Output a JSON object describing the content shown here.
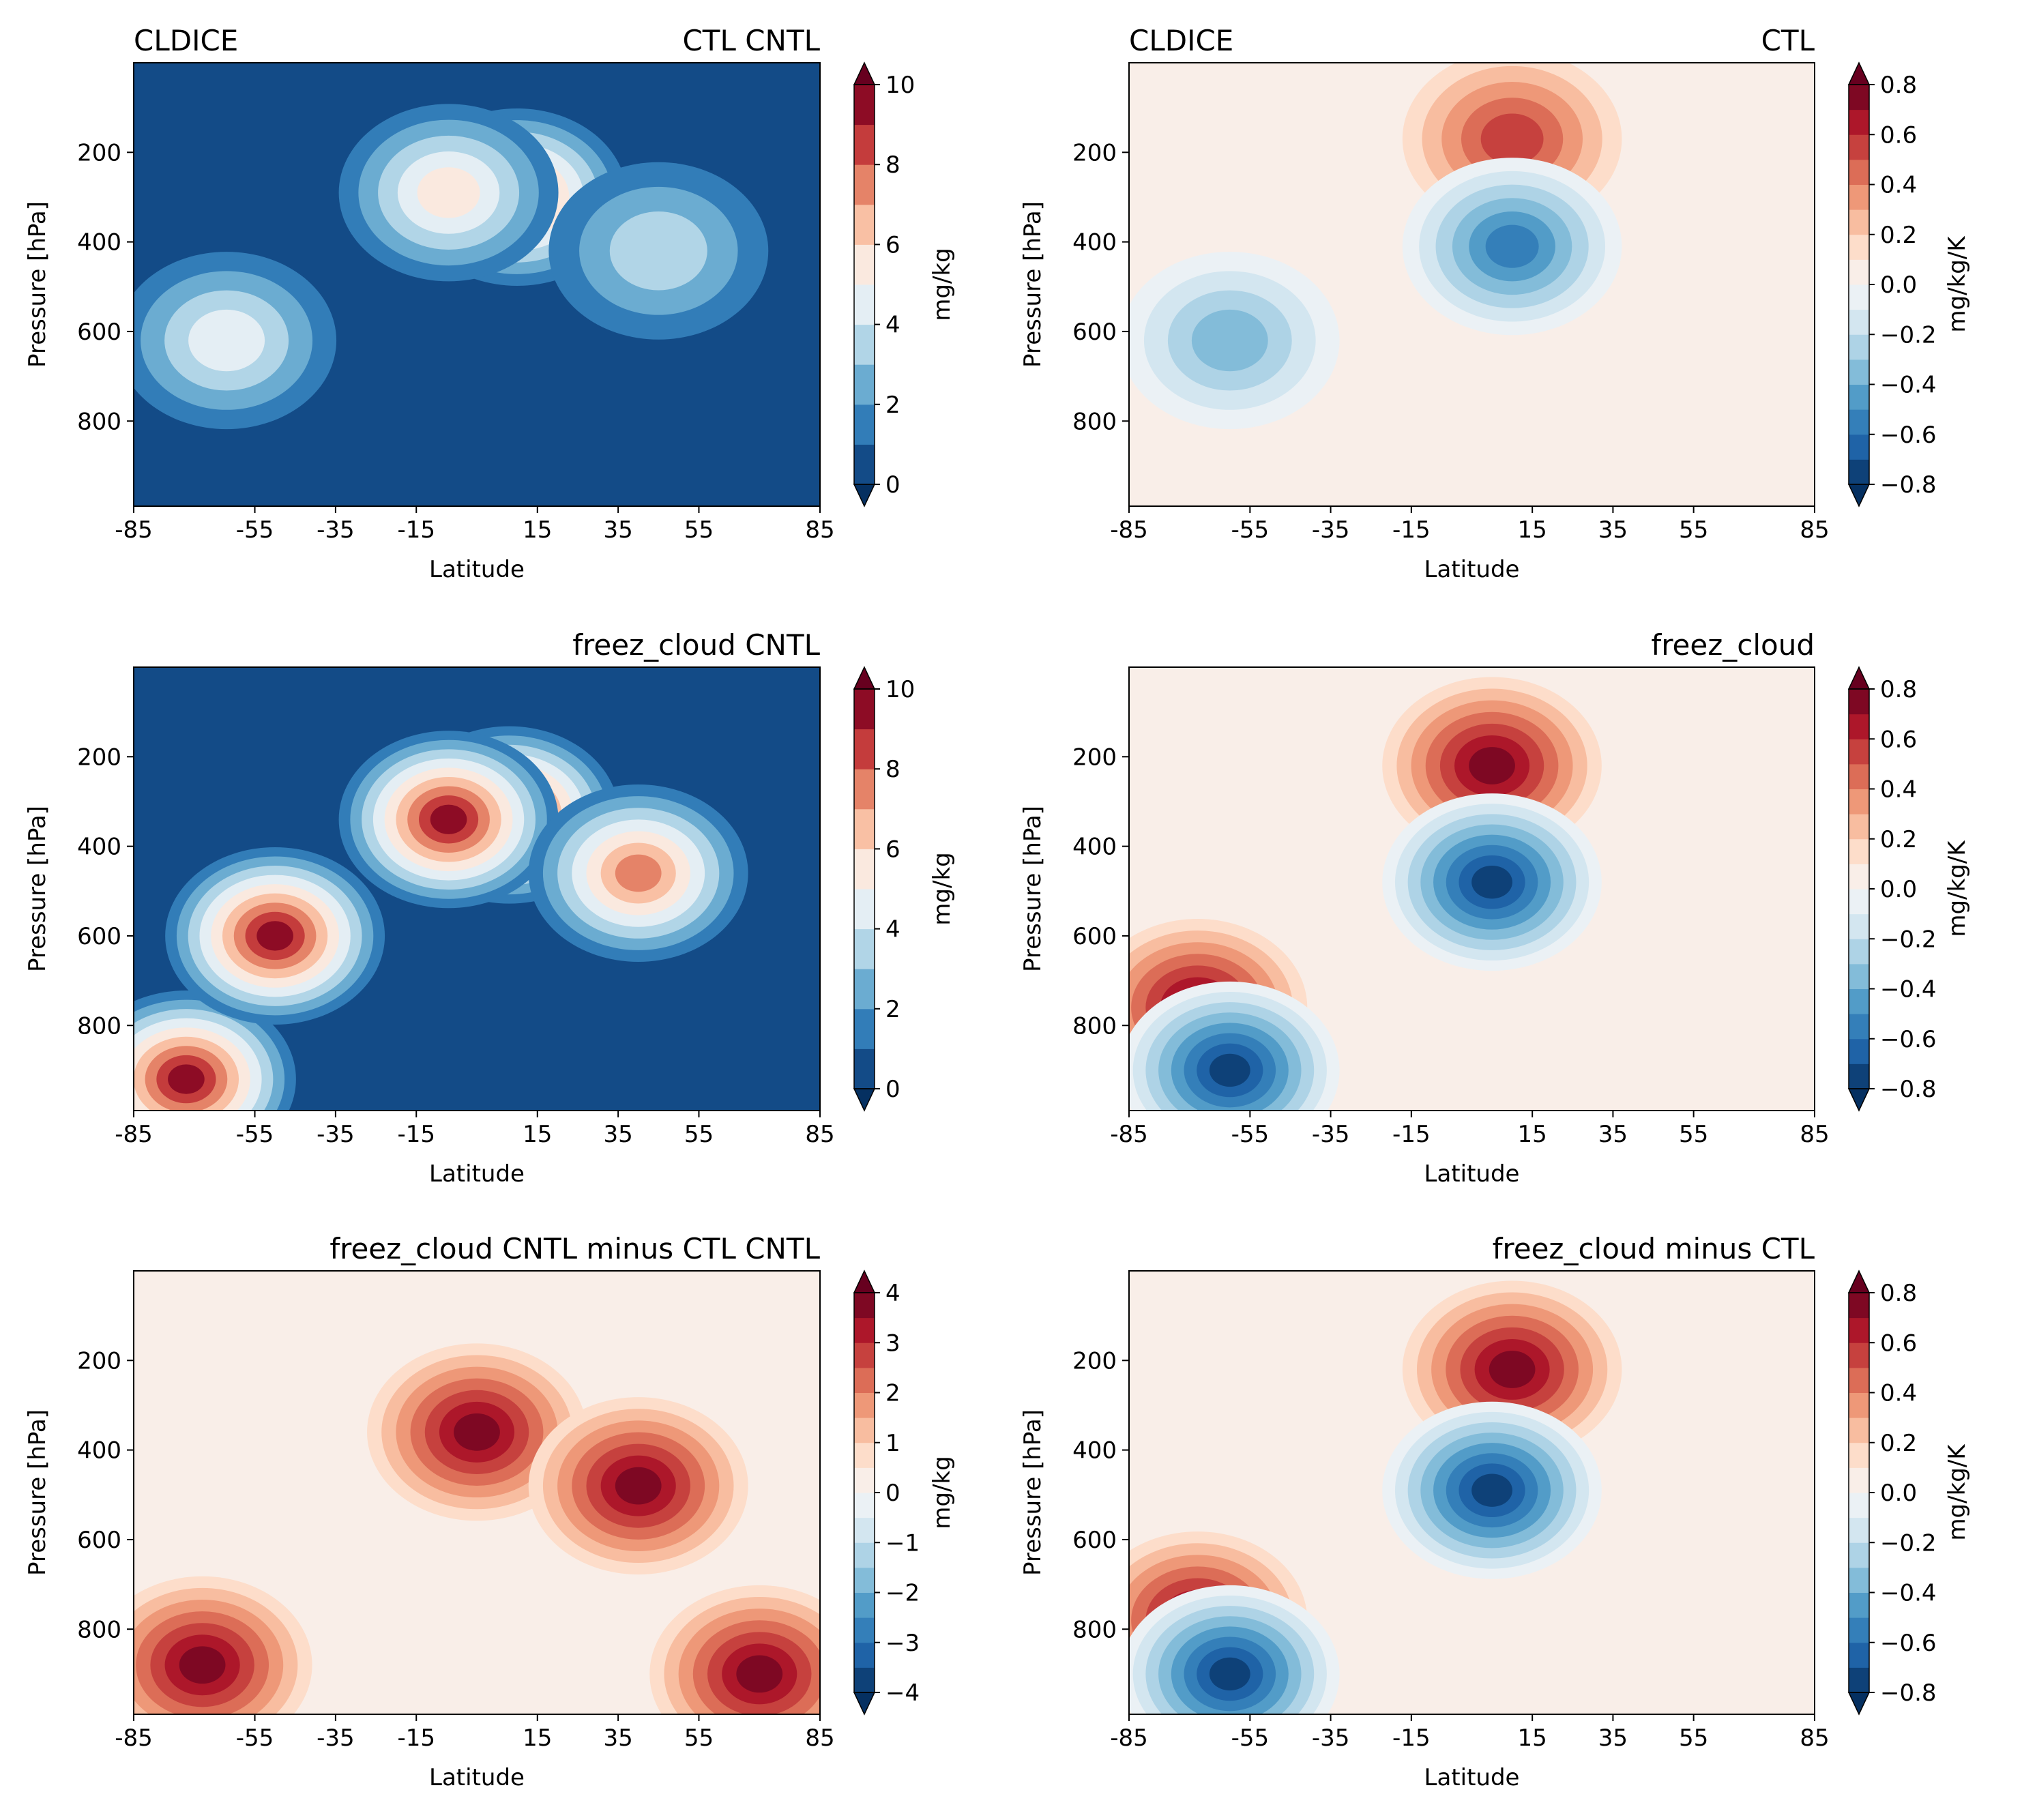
{
  "chart_data": [
    {
      "type": "heatmap",
      "left_title": "CLDICE",
      "right_title": "CTL CNTL",
      "xlabel": "Latitude",
      "ylabel": "Pressure [hPa]",
      "xlim": [
        -85,
        85
      ],
      "ylim": [
        990,
        0
      ],
      "xticks": [
        -85,
        -55,
        -35,
        -15,
        15,
        35,
        55,
        85
      ],
      "yticks": [
        200,
        400,
        600,
        800
      ],
      "colorbar": {
        "label": "mg/kg",
        "vmin": 0,
        "vmax": 10,
        "ticks": [
          0,
          2,
          4,
          6,
          8,
          10
        ],
        "levels": 10,
        "extend": "both"
      },
      "features": [
        {
          "lat": 10,
          "p": 300,
          "value": 7.5,
          "note": "max near 15N"
        },
        {
          "lat": -7,
          "p": 290,
          "value": 5.0
        },
        {
          "lat": -62,
          "p": 620,
          "value": 4.5
        },
        {
          "lat": 45,
          "p": 420,
          "value": 3.5
        },
        {
          "lat": 0,
          "p": 800,
          "value": 0.5
        }
      ]
    },
    {
      "type": "heatmap",
      "left_title": "CLDICE",
      "right_title": "CTL",
      "xlabel": "Latitude",
      "ylabel": "Pressure [hPa]",
      "xlim": [
        -85,
        85
      ],
      "ylim": [
        990,
        0
      ],
      "xticks": [
        -85,
        -55,
        -35,
        -15,
        15,
        35,
        55,
        85
      ],
      "yticks": [
        200,
        400,
        600,
        800
      ],
      "colorbar": {
        "label": "mg/kg/K",
        "vmin": -0.8,
        "vmax": 0.8,
        "ticks": [
          -0.8,
          -0.6,
          -0.4,
          -0.2,
          0.0,
          0.2,
          0.4,
          0.6,
          0.8
        ],
        "levels": 16,
        "extend": "both"
      },
      "features": [
        {
          "lat": 10,
          "p": 170,
          "value": 0.6
        },
        {
          "lat": 10,
          "p": 410,
          "value": -0.55
        },
        {
          "lat": -60,
          "p": 620,
          "value": -0.4
        }
      ]
    },
    {
      "type": "heatmap",
      "left_title": "",
      "right_title": "freez_cloud CNTL",
      "xlabel": "Latitude",
      "ylabel": "Pressure [hPa]",
      "xlim": [
        -85,
        85
      ],
      "ylim": [
        990,
        0
      ],
      "xticks": [
        -85,
        -55,
        -35,
        -15,
        15,
        35,
        55,
        85
      ],
      "yticks": [
        200,
        400,
        600,
        800
      ],
      "colorbar": {
        "label": "mg/kg",
        "vmin": 0,
        "vmax": 10,
        "ticks": [
          0,
          2,
          4,
          6,
          8,
          10
        ],
        "levels": 10,
        "extend": "both"
      },
      "features": [
        {
          "lat": 8,
          "p": 330,
          "value": 10.0
        },
        {
          "lat": -72,
          "p": 920,
          "value": 10.0
        },
        {
          "lat": -7,
          "p": 340,
          "value": 9.5
        },
        {
          "lat": -50,
          "p": 600,
          "value": 9.0
        },
        {
          "lat": 40,
          "p": 460,
          "value": 7.5
        }
      ]
    },
    {
      "type": "heatmap",
      "left_title": "",
      "right_title": "freez_cloud",
      "xlabel": "Latitude",
      "ylabel": "Pressure [hPa]",
      "xlim": [
        -85,
        85
      ],
      "ylim": [
        990,
        0
      ],
      "xticks": [
        -85,
        -55,
        -35,
        -15,
        15,
        35,
        55,
        85
      ],
      "yticks": [
        200,
        400,
        600,
        800
      ],
      "colorbar": {
        "label": "mg/kg/K",
        "vmin": -0.8,
        "vmax": 0.8,
        "ticks": [
          -0.8,
          -0.6,
          -0.4,
          -0.2,
          0.0,
          0.2,
          0.4,
          0.6,
          0.8
        ],
        "levels": 16,
        "extend": "both"
      },
      "features": [
        {
          "lat": 5,
          "p": 220,
          "value": 0.85
        },
        {
          "lat": 5,
          "p": 480,
          "value": -0.85
        },
        {
          "lat": -68,
          "p": 760,
          "value": 0.75
        },
        {
          "lat": -60,
          "p": 900,
          "value": -0.85
        }
      ]
    },
    {
      "type": "heatmap",
      "left_title": "",
      "right_title": "freez_cloud CNTL minus CTL CNTL",
      "xlabel": "Latitude",
      "ylabel": "Pressure [hPa]",
      "xlim": [
        -85,
        85
      ],
      "ylim": [
        990,
        0
      ],
      "xticks": [
        -85,
        -55,
        -35,
        -15,
        15,
        35,
        55,
        85
      ],
      "yticks": [
        200,
        400,
        600,
        800
      ],
      "colorbar": {
        "label": "mg/kg",
        "vmin": -4,
        "vmax": 4,
        "ticks": [
          -4,
          -3,
          -2,
          -1,
          0,
          1,
          2,
          3,
          4
        ],
        "levels": 16,
        "extend": "both"
      },
      "features": [
        {
          "lat": 0,
          "p": 360,
          "value": 4.2
        },
        {
          "lat": -68,
          "p": 880,
          "value": 4.2
        },
        {
          "lat": 70,
          "p": 900,
          "value": 4.0
        },
        {
          "lat": 40,
          "p": 480,
          "value": 3.5
        }
      ]
    },
    {
      "type": "heatmap",
      "left_title": "",
      "right_title": "freez_cloud minus CTL",
      "xlabel": "Latitude",
      "ylabel": "Pressure [hPa]",
      "xlim": [
        -85,
        85
      ],
      "ylim": [
        990,
        0
      ],
      "xticks": [
        -85,
        -55,
        -35,
        -15,
        15,
        35,
        55,
        85
      ],
      "yticks": [
        200,
        400,
        600,
        800
      ],
      "colorbar": {
        "label": "mg/kg/K",
        "vmin": -0.8,
        "vmax": 0.8,
        "ticks": [
          -0.8,
          -0.6,
          -0.4,
          -0.2,
          0.0,
          0.2,
          0.4,
          0.6,
          0.8
        ],
        "levels": 16,
        "extend": "both"
      },
      "features": [
        {
          "lat": 10,
          "p": 220,
          "value": 0.8
        },
        {
          "lat": 5,
          "p": 490,
          "value": -0.8
        },
        {
          "lat": -68,
          "p": 780,
          "value": 0.7
        },
        {
          "lat": -60,
          "p": 900,
          "value": -0.8
        }
      ]
    }
  ]
}
